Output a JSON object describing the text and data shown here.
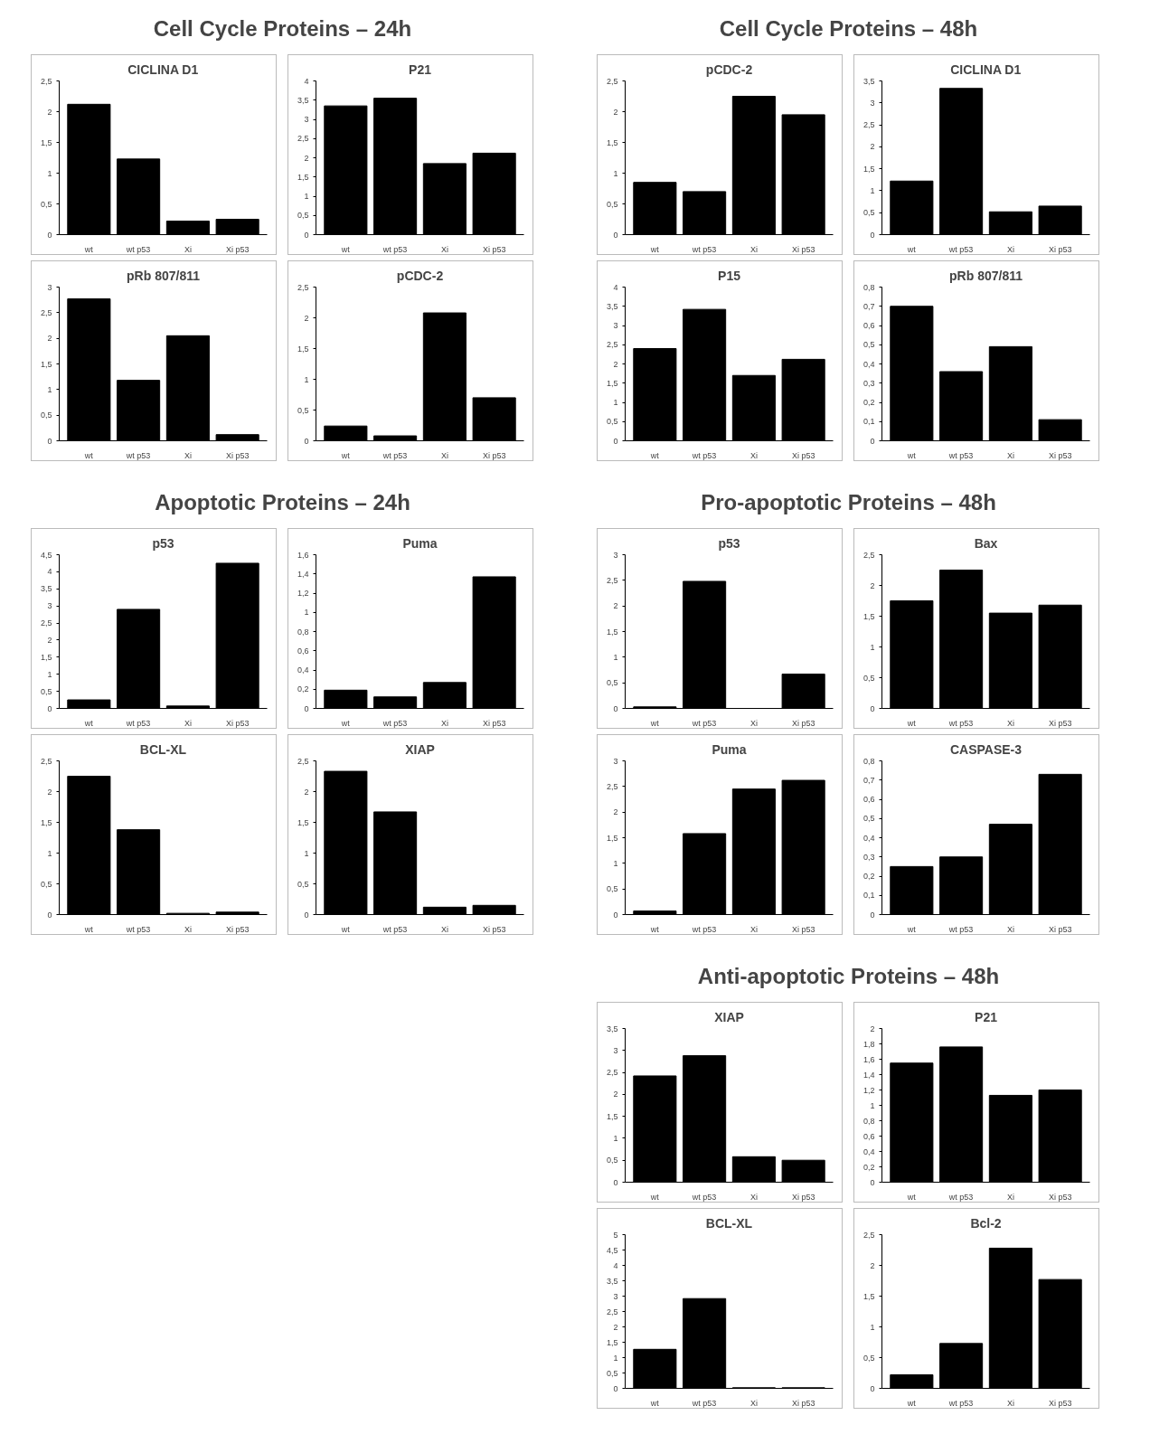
{
  "chart_data": [
    {
      "type": "other",
      "title": "Cell Cycle Proteins – 24h"
    },
    {
      "type": "bar",
      "title": "CICLINA D1",
      "categories": [
        "wt",
        "wt p53",
        "Xi",
        "Xi p53"
      ],
      "values": [
        2.12,
        1.23,
        0.22,
        0.25
      ],
      "color": "#000000",
      "ylim": [
        0,
        2.5
      ],
      "yticks": [
        0,
        {
          "value": 0.5,
          "label": "0,5"
        },
        1,
        {
          "value": 1.5,
          "label": "1,5"
        },
        2,
        {
          "value": 2.5,
          "label": "2,5"
        }
      ]
    },
    {
      "type": "bar",
      "title": "P21",
      "categories": [
        "wt",
        "wt p53",
        "Xi",
        "Xi p53"
      ],
      "values": [
        3.35,
        3.55,
        1.85,
        2.12
      ],
      "color": "#000000",
      "ylim": [
        0,
        4
      ],
      "yticks": [
        0,
        {
          "value": 0.5,
          "label": "0,5"
        },
        1,
        {
          "value": 1.5,
          "label": "1,5"
        },
        2,
        {
          "value": 2.5,
          "label": "2,5"
        },
        3,
        {
          "value": 3.5,
          "label": "3,5"
        },
        4
      ]
    },
    {
      "type": "bar",
      "title": "pRb 807/811",
      "categories": [
        "wt",
        "wt p53",
        "Xi",
        "Xi p53"
      ],
      "values": [
        2.77,
        1.18,
        2.05,
        0.12
      ],
      "color": "#000000",
      "ylim": [
        0,
        3
      ],
      "yticks": [
        0,
        {
          "value": 0.5,
          "label": "0,5"
        },
        1,
        {
          "value": 1.5,
          "label": "1,5"
        },
        2,
        {
          "value": 2.5,
          "label": "2,5"
        },
        3
      ]
    },
    {
      "type": "bar",
      "title": "pCDC-2",
      "categories": [
        "wt",
        "wt p53",
        "Xi",
        "Xi p53"
      ],
      "values": [
        0.24,
        0.08,
        2.08,
        0.7
      ],
      "color": "#000000",
      "ylim": [
        0,
        2.5
      ],
      "yticks": [
        0,
        {
          "value": 0.5,
          "label": "0,5"
        },
        1,
        {
          "value": 1.5,
          "label": "1,5"
        },
        2,
        {
          "value": 2.5,
          "label": "2,5"
        }
      ]
    },
    {
      "type": "other",
      "title": "Cell Cycle Proteins – 48h"
    },
    {
      "type": "bar",
      "title": "pCDC-2",
      "categories": [
        "wt",
        "wt p53",
        "Xi",
        "Xi p53"
      ],
      "values": [
        0.85,
        0.7,
        2.25,
        1.95
      ],
      "color": "#000000",
      "ylim": [
        0,
        2.5
      ],
      "yticks": [
        0,
        {
          "value": 0.5,
          "label": "0,5"
        },
        1,
        {
          "value": 1.5,
          "label": "1,5"
        },
        2,
        {
          "value": 2.5,
          "label": "2,5"
        }
      ]
    },
    {
      "type": "bar",
      "title": "CICLINA D1",
      "categories": [
        "wt",
        "wt p53",
        "Xi",
        "Xi p53"
      ],
      "values": [
        1.22,
        3.33,
        0.52,
        0.65
      ],
      "color": "#000000",
      "ylim": [
        0,
        3.5
      ],
      "yticks": [
        0,
        {
          "value": 0.5,
          "label": "0,5"
        },
        1,
        {
          "value": 1.5,
          "label": "1,5"
        },
        2,
        {
          "value": 2.5,
          "label": "2,5"
        },
        3,
        {
          "value": 3.5,
          "label": "3,5"
        }
      ]
    },
    {
      "type": "bar",
      "title": "P15",
      "categories": [
        "wt",
        "wt p53",
        "Xi",
        "Xi p53"
      ],
      "values": [
        2.4,
        3.42,
        1.7,
        2.12
      ],
      "color": "#000000",
      "ylim": [
        0,
        4
      ],
      "yticks": [
        0,
        {
          "value": 0.5,
          "label": "0,5"
        },
        1,
        {
          "value": 1.5,
          "label": "1,5"
        },
        2,
        {
          "value": 2.5,
          "label": "2,5"
        },
        3,
        {
          "value": 3.5,
          "label": "3,5"
        },
        4
      ]
    },
    {
      "type": "bar",
      "title": "pRb 807/811",
      "categories": [
        "wt",
        "wt p53",
        "Xi",
        "Xi p53"
      ],
      "values": [
        0.7,
        0.36,
        0.49,
        0.11
      ],
      "color": "#000000",
      "ylim": [
        0,
        0.8
      ],
      "yticks": [
        0,
        {
          "value": 0.1,
          "label": "0,1"
        },
        {
          "value": 0.2,
          "label": "0,2"
        },
        {
          "value": 0.3,
          "label": "0,3"
        },
        {
          "value": 0.4,
          "label": "0,4"
        },
        {
          "value": 0.5,
          "label": "0,5"
        },
        {
          "value": 0.6,
          "label": "0,6"
        },
        {
          "value": 0.7,
          "label": "0,7"
        },
        {
          "value": 0.8,
          "label": "0,8"
        }
      ]
    },
    {
      "type": "other",
      "title": "Apoptotic Proteins – 24h"
    },
    {
      "type": "bar",
      "title": "p53",
      "categories": [
        "wt",
        "wt p53",
        "Xi",
        "Xi p53"
      ],
      "values": [
        0.25,
        2.9,
        0.07,
        4.25
      ],
      "color": "#000000",
      "ylim": [
        0,
        4.5
      ],
      "yticks": [
        0,
        {
          "value": 0.5,
          "label": "0,5"
        },
        1,
        {
          "value": 1.5,
          "label": "1,5"
        },
        2,
        {
          "value": 2.5,
          "label": "2,5"
        },
        3,
        {
          "value": 3.5,
          "label": "3,5"
        },
        4,
        {
          "value": 4.5,
          "label": "4,5"
        }
      ]
    },
    {
      "type": "bar",
      "title": "Puma",
      "categories": [
        "wt",
        "wt p53",
        "Xi",
        "Xi p53"
      ],
      "values": [
        0.19,
        0.12,
        0.27,
        1.37
      ],
      "color": "#000000",
      "ylim": [
        0,
        1.6
      ],
      "yticks": [
        0,
        {
          "value": 0.2,
          "label": "0,2"
        },
        {
          "value": 0.4,
          "label": "0,4"
        },
        {
          "value": 0.6,
          "label": "0,6"
        },
        {
          "value": 0.8,
          "label": "0,8"
        },
        1,
        {
          "value": 1.2,
          "label": "1,2"
        },
        {
          "value": 1.4,
          "label": "1,4"
        },
        {
          "value": 1.6,
          "label": "1,6"
        }
      ]
    },
    {
      "type": "bar",
      "title": "BCL-XL",
      "categories": [
        "wt",
        "wt p53",
        "Xi",
        "Xi p53"
      ],
      "values": [
        2.25,
        1.38,
        0.02,
        0.04
      ],
      "color": "#000000",
      "ylim": [
        0,
        2.5
      ],
      "yticks": [
        0,
        {
          "value": 0.5,
          "label": "0,5"
        },
        1,
        {
          "value": 1.5,
          "label": "1,5"
        },
        2,
        {
          "value": 2.5,
          "label": "2,5"
        }
      ]
    },
    {
      "type": "bar",
      "title": "XIAP",
      "categories": [
        "wt",
        "wt p53",
        "Xi",
        "Xi p53"
      ],
      "values": [
        2.33,
        1.67,
        0.12,
        0.15
      ],
      "color": "#000000",
      "ylim": [
        0,
        2.5
      ],
      "yticks": [
        0,
        {
          "value": 0.5,
          "label": "0,5"
        },
        1,
        {
          "value": 1.5,
          "label": "1,5"
        },
        2,
        {
          "value": 2.5,
          "label": "2,5"
        }
      ]
    },
    {
      "type": "other",
      "title": "Pro-apoptotic Proteins – 48h"
    },
    {
      "type": "bar",
      "title": "p53",
      "categories": [
        "wt",
        "wt p53",
        "Xi",
        "Xi p53"
      ],
      "values": [
        0.03,
        2.48,
        0.0,
        0.67
      ],
      "color": "#000000",
      "ylim": [
        0,
        3
      ],
      "yticks": [
        0,
        {
          "value": 0.5,
          "label": "0,5"
        },
        1,
        {
          "value": 1.5,
          "label": "1,5"
        },
        2,
        {
          "value": 2.5,
          "label": "2,5"
        },
        3
      ]
    },
    {
      "type": "bar",
      "title": "Bax",
      "categories": [
        "wt",
        "wt p53",
        "Xi",
        "Xi p53"
      ],
      "values": [
        1.75,
        2.25,
        1.55,
        1.68
      ],
      "color": "#000000",
      "ylim": [
        0,
        2.5
      ],
      "yticks": [
        0,
        {
          "value": 0.5,
          "label": "0,5"
        },
        1,
        {
          "value": 1.5,
          "label": "1,5"
        },
        2,
        {
          "value": 2.5,
          "label": "2,5"
        }
      ]
    },
    {
      "type": "bar",
      "title": "Puma",
      "categories": [
        "wt",
        "wt p53",
        "Xi",
        "Xi p53"
      ],
      "values": [
        0.07,
        1.58,
        2.45,
        2.62
      ],
      "color": "#000000",
      "ylim": [
        0,
        3
      ],
      "yticks": [
        0,
        {
          "value": 0.5,
          "label": "0,5"
        },
        1,
        {
          "value": 1.5,
          "label": "1,5"
        },
        2,
        {
          "value": 2.5,
          "label": "2,5"
        },
        3
      ]
    },
    {
      "type": "bar",
      "title": "CASPASE-3",
      "categories": [
        "wt",
        "wt p53",
        "Xi",
        "Xi p53"
      ],
      "values": [
        0.25,
        0.3,
        0.47,
        0.73
      ],
      "color": "#000000",
      "ylim": [
        0,
        0.8
      ],
      "yticks": [
        0,
        {
          "value": 0.1,
          "label": "0,1"
        },
        {
          "value": 0.2,
          "label": "0,2"
        },
        {
          "value": 0.3,
          "label": "0,3"
        },
        {
          "value": 0.4,
          "label": "0,4"
        },
        {
          "value": 0.5,
          "label": "0,5"
        },
        {
          "value": 0.6,
          "label": "0,6"
        },
        {
          "value": 0.7,
          "label": "0,7"
        },
        {
          "value": 0.8,
          "label": "0,8"
        }
      ]
    },
    {
      "type": "other",
      "title": "Anti-apoptotic Proteins – 48h"
    },
    {
      "type": "bar",
      "title": "XIAP",
      "categories": [
        "wt",
        "wt p53",
        "Xi",
        "Xi p53"
      ],
      "values": [
        2.42,
        2.88,
        0.58,
        0.5
      ],
      "color": "#000000",
      "ylim": [
        0,
        3.5
      ],
      "yticks": [
        0,
        {
          "value": 0.5,
          "label": "0,5"
        },
        1,
        {
          "value": 1.5,
          "label": "1,5"
        },
        2,
        {
          "value": 2.5,
          "label": "2,5"
        },
        3,
        {
          "value": 3.5,
          "label": "3,5"
        }
      ]
    },
    {
      "type": "bar",
      "title": "P21",
      "categories": [
        "wt",
        "wt p53",
        "Xi",
        "Xi p53"
      ],
      "values": [
        1.55,
        1.76,
        1.13,
        1.2
      ],
      "color": "#000000",
      "ylim": [
        0,
        2
      ],
      "yticks": [
        0,
        {
          "value": 0.2,
          "label": "0,2"
        },
        {
          "value": 0.4,
          "label": "0,4"
        },
        {
          "value": 0.6,
          "label": "0,6"
        },
        {
          "value": 0.8,
          "label": "0,8"
        },
        1,
        {
          "value": 1.2,
          "label": "1,2"
        },
        {
          "value": 1.4,
          "label": "1,4"
        },
        {
          "value": 1.6,
          "label": "1,6"
        },
        {
          "value": 1.8,
          "label": "1,8"
        },
        2
      ]
    },
    {
      "type": "bar",
      "title": "BCL-XL",
      "categories": [
        "wt",
        "wt p53",
        "Xi",
        "Xi p53"
      ],
      "values": [
        1.27,
        2.92,
        0.02,
        0.02
      ],
      "color": "#000000",
      "ylim": [
        0,
        5
      ],
      "yticks": [
        0,
        {
          "value": 0.5,
          "label": "0,5"
        },
        1,
        {
          "value": 1.5,
          "label": "1,5"
        },
        2,
        {
          "value": 2.5,
          "label": "2,5"
        },
        3,
        {
          "value": 3.5,
          "label": "3,5"
        },
        4,
        {
          "value": 4.5,
          "label": "4,5"
        },
        5
      ]
    },
    {
      "type": "bar",
      "title": "Bcl-2",
      "categories": [
        "wt",
        "wt p53",
        "Xi",
        "Xi p53"
      ],
      "values": [
        0.22,
        0.73,
        2.28,
        1.77
      ],
      "color": "#000000",
      "ylim": [
        0,
        2.5
      ],
      "yticks": [
        0,
        {
          "value": 0.5,
          "label": "0,5"
        },
        1,
        {
          "value": 1.5,
          "label": "1,5"
        },
        2,
        {
          "value": 2.5,
          "label": "2,5"
        }
      ]
    }
  ]
}
